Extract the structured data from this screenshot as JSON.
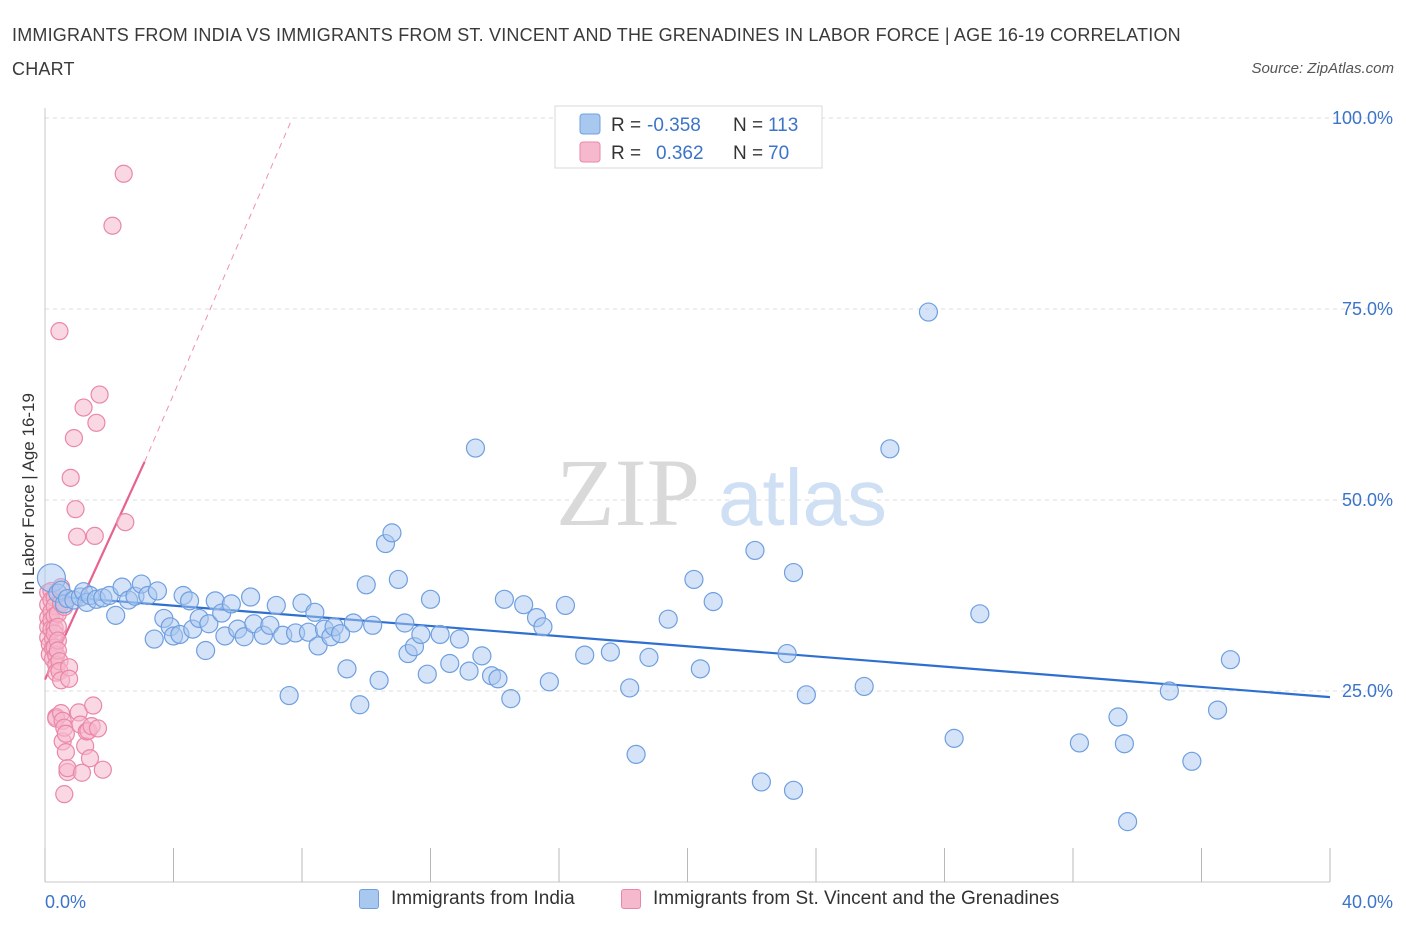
{
  "header": {
    "title": "IMMIGRANTS FROM INDIA VS IMMIGRANTS FROM ST. VINCENT AND THE GRENADINES IN LABOR FORCE | AGE 16-19 CORRELATION CHART",
    "source": "Source: ZipAtlas.com"
  },
  "watermark": {
    "zip": "ZIP",
    "atlas": "atlas"
  },
  "colors": {
    "india_fill": "#a9c8f0",
    "india_stroke": "#6f9fe0",
    "india_line": "#2f6fcf",
    "svg_fill": "#f6b8cc",
    "svg_stroke": "#ea87a7",
    "svg_line": "#e8628f",
    "axis_label": "#3b74c9",
    "grid": "#dcdcdc"
  },
  "legend": {
    "rows": [
      {
        "r_label": "R =",
        "r_value": "-0.358",
        "n_label": "N =",
        "n_value": "113"
      },
      {
        "r_label": "R =",
        "r_value": "0.362",
        "n_label": "N =",
        "n_value": "70"
      }
    ]
  },
  "chart_data": {
    "type": "scatter",
    "title": "IMMIGRANTS FROM INDIA VS IMMIGRANTS FROM ST. VINCENT AND THE GRENADINES IN LABOR FORCE | AGE 16-19 CORRELATION CHART",
    "xlabel": "",
    "ylabel": "In Labor Force | Age 16-19",
    "xlim": [
      0,
      40
    ],
    "ylim": [
      0,
      100
    ],
    "x_tick_labels": [
      "0.0%",
      "40.0%"
    ],
    "y_tick_labels": [
      "100.0%",
      "75.0%",
      "50.0%",
      "25.0%"
    ],
    "y_ticks": [
      100,
      75,
      50,
      25
    ],
    "grid": true,
    "legend_position": "top-center",
    "series": [
      {
        "name": "Immigrants from India",
        "r": -0.358,
        "n": 113,
        "trend": {
          "x": [
            0,
            40
          ],
          "y": [
            37.5,
            24.2
          ]
        },
        "points": [
          [
            0.2,
            39.8
          ],
          [
            0.4,
            37.8
          ],
          [
            0.5,
            38.2
          ],
          [
            0.6,
            36.4
          ],
          [
            0.7,
            37.1
          ],
          [
            0.9,
            36.9
          ],
          [
            1.1,
            37.3
          ],
          [
            1.2,
            38.0
          ],
          [
            1.3,
            36.6
          ],
          [
            1.4,
            37.5
          ],
          [
            1.6,
            37.0
          ],
          [
            1.8,
            37.2
          ],
          [
            2.0,
            37.5
          ],
          [
            2.2,
            34.9
          ],
          [
            2.4,
            38.6
          ],
          [
            2.6,
            36.9
          ],
          [
            2.8,
            37.4
          ],
          [
            3.0,
            39.0
          ],
          [
            3.2,
            37.5
          ],
          [
            3.4,
            31.8
          ],
          [
            3.5,
            38.1
          ],
          [
            3.7,
            34.5
          ],
          [
            3.9,
            33.4
          ],
          [
            4.0,
            32.2
          ],
          [
            4.2,
            32.4
          ],
          [
            4.3,
            37.5
          ],
          [
            4.5,
            36.8
          ],
          [
            4.6,
            33.1
          ],
          [
            4.8,
            34.5
          ],
          [
            5.0,
            30.3
          ],
          [
            5.1,
            33.8
          ],
          [
            5.3,
            36.8
          ],
          [
            5.5,
            35.2
          ],
          [
            5.6,
            32.2
          ],
          [
            5.8,
            36.4
          ],
          [
            6.0,
            33.1
          ],
          [
            6.2,
            32.1
          ],
          [
            6.4,
            37.3
          ],
          [
            6.5,
            33.8
          ],
          [
            6.8,
            32.3
          ],
          [
            7.0,
            33.6
          ],
          [
            7.2,
            36.2
          ],
          [
            7.4,
            32.3
          ],
          [
            7.6,
            24.4
          ],
          [
            7.8,
            32.6
          ],
          [
            8.0,
            36.5
          ],
          [
            8.2,
            32.7
          ],
          [
            8.4,
            35.3
          ],
          [
            8.5,
            30.9
          ],
          [
            8.7,
            33.1
          ],
          [
            8.9,
            32.1
          ],
          [
            9.0,
            33.4
          ],
          [
            9.2,
            32.5
          ],
          [
            9.4,
            27.9
          ],
          [
            9.6,
            33.9
          ],
          [
            9.8,
            23.2
          ],
          [
            10.0,
            38.9
          ],
          [
            10.2,
            33.6
          ],
          [
            10.4,
            26.4
          ],
          [
            10.6,
            44.3
          ],
          [
            10.8,
            45.7
          ],
          [
            11.0,
            39.6
          ],
          [
            11.2,
            33.9
          ],
          [
            11.3,
            29.9
          ],
          [
            11.5,
            30.8
          ],
          [
            11.7,
            32.4
          ],
          [
            11.9,
            27.2
          ],
          [
            12.0,
            37.0
          ],
          [
            12.3,
            32.4
          ],
          [
            12.6,
            28.6
          ],
          [
            12.9,
            31.8
          ],
          [
            13.2,
            27.6
          ],
          [
            13.4,
            56.8
          ],
          [
            13.6,
            29.6
          ],
          [
            13.9,
            27.0
          ],
          [
            14.1,
            26.6
          ],
          [
            14.3,
            37.0
          ],
          [
            14.5,
            24.0
          ],
          [
            14.9,
            36.3
          ],
          [
            15.3,
            34.6
          ],
          [
            15.5,
            33.4
          ],
          [
            15.7,
            26.2
          ],
          [
            16.2,
            36.2
          ],
          [
            16.8,
            29.7
          ],
          [
            17.6,
            30.1
          ],
          [
            18.2,
            25.4
          ],
          [
            18.4,
            16.7
          ],
          [
            18.8,
            29.4
          ],
          [
            19.4,
            34.4
          ],
          [
            20.2,
            39.6
          ],
          [
            20.4,
            27.9
          ],
          [
            20.8,
            36.7
          ],
          [
            22.1,
            43.4
          ],
          [
            22.3,
            13.1
          ],
          [
            23.1,
            29.9
          ],
          [
            23.3,
            40.5
          ],
          [
            23.3,
            12.0
          ],
          [
            23.7,
            24.5
          ],
          [
            25.5,
            25.6
          ],
          [
            26.3,
            56.7
          ],
          [
            27.5,
            74.6
          ],
          [
            28.3,
            18.8
          ],
          [
            29.1,
            35.1
          ],
          [
            32.2,
            18.2
          ],
          [
            33.4,
            21.6
          ],
          [
            33.6,
            18.1
          ],
          [
            33.7,
            7.9
          ],
          [
            35.0,
            25.0
          ],
          [
            35.7,
            15.8
          ],
          [
            36.5,
            22.5
          ],
          [
            36.9,
            29.1
          ]
        ]
      },
      {
        "name": "Immigrants from St. Vincent and the Grenadines",
        "r": 0.362,
        "n": 70,
        "trend_solid": {
          "x": [
            0,
            3.1
          ],
          "y": [
            26.5,
            55.0
          ]
        },
        "trend_dashed": {
          "x": [
            3.1,
            7.7
          ],
          "y": [
            55.0,
            100
          ]
        },
        "points": [
          [
            0.1,
            37.9
          ],
          [
            0.1,
            36.3
          ],
          [
            0.1,
            34.6
          ],
          [
            0.1,
            33.4
          ],
          [
            0.1,
            32.0
          ],
          [
            0.15,
            31.1
          ],
          [
            0.15,
            29.8
          ],
          [
            0.2,
            38.1
          ],
          [
            0.2,
            36.9
          ],
          [
            0.2,
            35.4
          ],
          [
            0.2,
            34.3
          ],
          [
            0.2,
            33.1
          ],
          [
            0.25,
            31.9
          ],
          [
            0.25,
            30.6
          ],
          [
            0.25,
            29.2
          ],
          [
            0.3,
            37.2
          ],
          [
            0.3,
            36.1
          ],
          [
            0.3,
            34.8
          ],
          [
            0.3,
            33.2
          ],
          [
            0.3,
            32.5
          ],
          [
            0.3,
            30.7
          ],
          [
            0.35,
            29.7
          ],
          [
            0.35,
            28.4
          ],
          [
            0.35,
            27.4
          ],
          [
            0.35,
            21.6
          ],
          [
            0.35,
            21.4
          ],
          [
            0.4,
            35.1
          ],
          [
            0.4,
            33.4
          ],
          [
            0.4,
            31.6
          ],
          [
            0.4,
            30.3
          ],
          [
            0.45,
            28.9
          ],
          [
            0.45,
            27.6
          ],
          [
            0.45,
            72.1
          ],
          [
            0.5,
            38.6
          ],
          [
            0.5,
            36.5
          ],
          [
            0.5,
            26.4
          ],
          [
            0.5,
            22.1
          ],
          [
            0.55,
            21.1
          ],
          [
            0.55,
            18.4
          ],
          [
            0.6,
            36.0
          ],
          [
            0.6,
            20.2
          ],
          [
            0.6,
            11.5
          ],
          [
            0.65,
            19.4
          ],
          [
            0.65,
            17.0
          ],
          [
            0.7,
            14.4
          ],
          [
            0.7,
            14.9
          ],
          [
            0.75,
            28.1
          ],
          [
            0.75,
            26.6
          ],
          [
            0.8,
            52.9
          ],
          [
            0.9,
            58.1
          ],
          [
            0.95,
            48.8
          ],
          [
            1.0,
            45.2
          ],
          [
            1.05,
            22.2
          ],
          [
            1.1,
            20.6
          ],
          [
            1.15,
            14.3
          ],
          [
            1.2,
            62.1
          ],
          [
            1.25,
            17.8
          ],
          [
            1.3,
            19.7
          ],
          [
            1.35,
            19.8
          ],
          [
            1.4,
            16.2
          ],
          [
            1.45,
            20.4
          ],
          [
            1.5,
            23.1
          ],
          [
            1.55,
            45.3
          ],
          [
            1.6,
            60.1
          ],
          [
            1.65,
            20.1
          ],
          [
            1.7,
            63.8
          ],
          [
            1.8,
            14.7
          ],
          [
            2.1,
            85.9
          ],
          [
            2.45,
            92.7
          ],
          [
            2.5,
            47.1
          ]
        ]
      }
    ]
  },
  "bottom_legend": {
    "india_label": "Immigrants from India",
    "svg_label": "Immigrants from St. Vincent and the Grenadines"
  }
}
